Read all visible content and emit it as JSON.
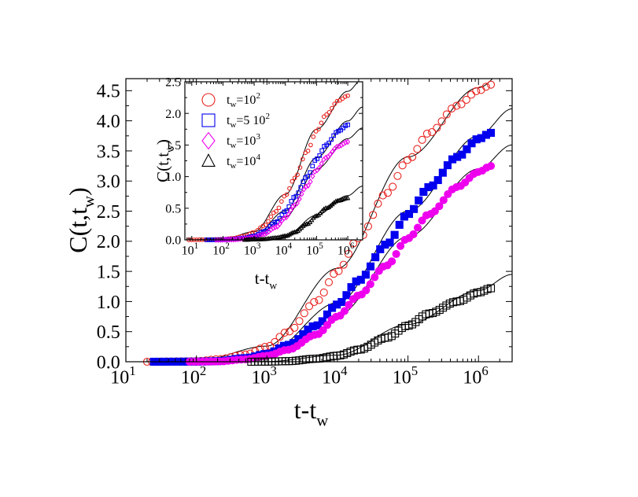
{
  "chart_data": [
    {
      "type": "scatter",
      "panel": "main",
      "xscale": "log",
      "xlabel": "t-t_w",
      "ylabel": "C(t,t_w)",
      "xlim": [
        10,
        3000000
      ],
      "ylim": [
        0,
        4.7
      ],
      "x_ticks": [
        {
          "value": 10,
          "base": "10",
          "exp": "1"
        },
        {
          "value": 100,
          "base": "10",
          "exp": "2"
        },
        {
          "value": 1000,
          "base": "10",
          "exp": "3"
        },
        {
          "value": 10000,
          "base": "10",
          "exp": "4"
        },
        {
          "value": 100000,
          "base": "10",
          "exp": "5"
        },
        {
          "value": 1000000,
          "base": "10",
          "exp": "6"
        }
      ],
      "y_ticks": [
        {
          "value": 0,
          "label": "0.0"
        },
        {
          "value": 0.5,
          "label": "0.5"
        },
        {
          "value": 1.0,
          "label": "1.0"
        },
        {
          "value": 1.5,
          "label": "1.5"
        },
        {
          "value": 2.0,
          "label": "2.0"
        },
        {
          "value": 2.5,
          "label": "2.5"
        },
        {
          "value": 3.0,
          "label": "3.0"
        },
        {
          "value": 3.5,
          "label": "3.5"
        },
        {
          "value": 4.0,
          "label": "4.0"
        },
        {
          "value": 4.5,
          "label": "4.5"
        }
      ],
      "series": [
        {
          "tw": "100",
          "marker": "circle-open",
          "color": "#e8231f",
          "points": [
            [
              20,
              0.0
            ],
            [
              50,
              0.005
            ],
            [
              100,
              0.01
            ],
            [
              200,
              0.04
            ],
            [
              500,
              0.12
            ],
            [
              1000,
              0.25
            ],
            [
              2000,
              0.5
            ],
            [
              5000,
              1.0
            ],
            [
              10000,
              1.5
            ],
            [
              20000,
              2.05
            ],
            [
              50000,
              2.8
            ],
            [
              100000,
              3.35
            ],
            [
              200000,
              3.8
            ],
            [
              500000,
              4.25
            ],
            [
              1000000,
              4.5
            ],
            [
              1500000,
              4.6
            ]
          ]
        },
        {
          "tw": "5 10^2",
          "marker": "square-filled",
          "color": "#0000ee",
          "points": [
            [
              25,
              0.0
            ],
            [
              100,
              0.002
            ],
            [
              200,
              0.01
            ],
            [
              500,
              0.06
            ],
            [
              1000,
              0.13
            ],
            [
              2000,
              0.28
            ],
            [
              5000,
              0.6
            ],
            [
              10000,
              0.95
            ],
            [
              20000,
              1.35
            ],
            [
              50000,
              1.95
            ],
            [
              100000,
              2.45
            ],
            [
              200000,
              2.9
            ],
            [
              500000,
              3.4
            ],
            [
              1000000,
              3.7
            ],
            [
              1500000,
              3.8
            ]
          ]
        },
        {
          "tw": "10^3",
          "marker": "circle-filled",
          "color": "#ee00ee",
          "points": [
            [
              80,
              0.0
            ],
            [
              200,
              0.005
            ],
            [
              500,
              0.04
            ],
            [
              1000,
              0.1
            ],
            [
              2000,
              0.2
            ],
            [
              5000,
              0.45
            ],
            [
              10000,
              0.75
            ],
            [
              20000,
              1.1
            ],
            [
              50000,
              1.6
            ],
            [
              100000,
              2.05
            ],
            [
              200000,
              2.45
            ],
            [
              500000,
              2.9
            ],
            [
              1000000,
              3.15
            ],
            [
              1500000,
              3.25
            ]
          ]
        },
        {
          "tw": "10^4",
          "marker": "square-open",
          "color": "#000000",
          "points": [
            [
              600,
              0.0
            ],
            [
              1000,
              0.002
            ],
            [
              2000,
              0.01
            ],
            [
              5000,
              0.05
            ],
            [
              10000,
              0.1
            ],
            [
              20000,
              0.2
            ],
            [
              50000,
              0.4
            ],
            [
              100000,
              0.6
            ],
            [
              200000,
              0.8
            ],
            [
              500000,
              1.0
            ],
            [
              1000000,
              1.15
            ],
            [
              1500000,
              1.22
            ]
          ]
        }
      ],
      "fit_curves": [
        {
          "points": [
            [
              18,
              0.0
            ],
            [
              100,
              0.012
            ],
            [
              1000,
              0.26
            ],
            [
              10000,
              1.55
            ],
            [
              100000,
              3.4
            ],
            [
              1000000,
              4.55
            ],
            [
              3000000,
              4.95
            ]
          ]
        },
        {
          "points": [
            [
              18,
              0.0
            ],
            [
              100,
              0.003
            ],
            [
              1000,
              0.14
            ],
            [
              10000,
              0.98
            ],
            [
              100000,
              2.5
            ],
            [
              1000000,
              3.75
            ],
            [
              3000000,
              4.2
            ]
          ]
        },
        {
          "points": [
            [
              70,
              0.0
            ],
            [
              200,
              0.006
            ],
            [
              1000,
              0.11
            ],
            [
              10000,
              0.77
            ],
            [
              100000,
              2.08
            ],
            [
              1000000,
              3.2
            ],
            [
              3000000,
              3.6
            ]
          ]
        },
        {
          "points": [
            [
              500,
              0.0
            ],
            [
              1000,
              0.003
            ],
            [
              10000,
              0.11
            ],
            [
              100000,
              0.62
            ],
            [
              1000000,
              1.18
            ],
            [
              3000000,
              1.45
            ]
          ]
        }
      ]
    },
    {
      "type": "scatter",
      "panel": "inset",
      "xscale": "log",
      "xlabel": "t-t_w",
      "ylabel": "C(t,t_w)",
      "xlim": [
        6,
        3000000
      ],
      "ylim": [
        0,
        2.5
      ],
      "x_ticks": [
        {
          "value": 10,
          "base": "10",
          "exp": "1"
        },
        {
          "value": 100,
          "base": "10",
          "exp": "2"
        },
        {
          "value": 1000,
          "base": "10",
          "exp": "3"
        },
        {
          "value": 10000,
          "base": "10",
          "exp": "4"
        },
        {
          "value": 100000,
          "base": "10",
          "exp": "5"
        },
        {
          "value": 1000000,
          "base": "10",
          "exp": "6"
        }
      ],
      "y_ticks": [
        {
          "value": 0,
          "label": "0.0"
        },
        {
          "value": 0.5,
          "label": "0.5"
        },
        {
          "value": 1.0,
          "label": "1.0"
        },
        {
          "value": 1.5,
          "label": "1.5"
        },
        {
          "value": 2.0,
          "label": "2.0"
        },
        {
          "value": 2.5,
          "label": "2.5"
        }
      ],
      "legend": {
        "position": "top-left",
        "entries": [
          {
            "text": "t_w=10^2",
            "prefix": "t",
            "sub": "w",
            "mid": "=10",
            "sup": "2",
            "marker": "circle-open",
            "color": "#e8231f"
          },
          {
            "text": "t_w=5 10^2",
            "prefix": "t",
            "sub": "w",
            "mid": "=5 10",
            "sup": "2",
            "marker": "square-open",
            "color": "#0000ee"
          },
          {
            "text": "t_w=10^3",
            "prefix": "t",
            "sub": "w",
            "mid": "=10",
            "sup": "3",
            "marker": "diamond-open",
            "color": "#ee00ee"
          },
          {
            "text": "t_w=10^4",
            "prefix": "t",
            "sub": "w",
            "mid": "=10",
            "sup": "4",
            "marker": "triangle-open",
            "color": "#000000"
          }
        ]
      },
      "series": [
        {
          "tw": "100",
          "marker": "circle-open",
          "color": "#e8231f",
          "points": [
            [
              8,
              0.0
            ],
            [
              20,
              0.002
            ],
            [
              50,
              0.005
            ],
            [
              100,
              0.01
            ],
            [
              200,
              0.025
            ],
            [
              500,
              0.06
            ],
            [
              1000,
              0.12
            ],
            [
              2000,
              0.22
            ],
            [
              5000,
              0.45
            ],
            [
              10000,
              0.7
            ],
            [
              20000,
              0.98
            ],
            [
              50000,
              1.4
            ],
            [
              100000,
              1.72
            ],
            [
              200000,
              1.98
            ],
            [
              500000,
              2.2
            ],
            [
              1000000,
              2.28
            ]
          ]
        },
        {
          "tw": "5 10^2",
          "marker": "square-open",
          "color": "#0000ee",
          "points": [
            [
              30,
              0.0
            ],
            [
              100,
              0.003
            ],
            [
              200,
              0.01
            ],
            [
              500,
              0.03
            ],
            [
              1000,
              0.06
            ],
            [
              2000,
              0.13
            ],
            [
              5000,
              0.28
            ],
            [
              10000,
              0.45
            ],
            [
              20000,
              0.68
            ],
            [
              50000,
              1.0
            ],
            [
              100000,
              1.28
            ],
            [
              200000,
              1.5
            ],
            [
              500000,
              1.72
            ],
            [
              1000000,
              1.82
            ]
          ]
        },
        {
          "tw": "10^3",
          "marker": "diamond-open",
          "color": "#ee00ee",
          "points": [
            [
              60,
              0.0
            ],
            [
              200,
              0.005
            ],
            [
              500,
              0.02
            ],
            [
              1000,
              0.04
            ],
            [
              2000,
              0.09
            ],
            [
              5000,
              0.2
            ],
            [
              10000,
              0.35
            ],
            [
              20000,
              0.55
            ],
            [
              50000,
              0.85
            ],
            [
              100000,
              1.1
            ],
            [
              200000,
              1.3
            ],
            [
              500000,
              1.48
            ],
            [
              1000000,
              1.55
            ]
          ]
        },
        {
          "tw": "10^4",
          "marker": "triangle-open",
          "color": "#000000",
          "points": [
            [
              500,
              0.0
            ],
            [
              1000,
              0.005
            ],
            [
              2000,
              0.01
            ],
            [
              5000,
              0.03
            ],
            [
              10000,
              0.06
            ],
            [
              20000,
              0.12
            ],
            [
              50000,
              0.25
            ],
            [
              100000,
              0.38
            ],
            [
              200000,
              0.5
            ],
            [
              500000,
              0.62
            ],
            [
              1000000,
              0.66
            ]
          ]
        }
      ],
      "fit_curves": [
        {
          "points": [
            [
              6,
              0.0
            ],
            [
              100,
              0.01
            ],
            [
              1000,
              0.13
            ],
            [
              10000,
              0.72
            ],
            [
              100000,
              1.75
            ],
            [
              1000000,
              2.35
            ],
            [
              3000000,
              2.55
            ]
          ]
        },
        {
          "points": [
            [
              6,
              0.0
            ],
            [
              100,
              0.004
            ],
            [
              1000,
              0.065
            ],
            [
              10000,
              0.46
            ],
            [
              100000,
              1.3
            ],
            [
              1000000,
              1.88
            ],
            [
              3000000,
              2.1
            ]
          ]
        },
        {
          "points": [
            [
              6,
              0.0
            ],
            [
              100,
              0.002
            ],
            [
              1000,
              0.045
            ],
            [
              10000,
              0.36
            ],
            [
              100000,
              1.12
            ],
            [
              1000000,
              1.6
            ],
            [
              3000000,
              1.77
            ]
          ]
        },
        {
          "points": [
            [
              100,
              0.0
            ],
            [
              1000,
              0.006
            ],
            [
              10000,
              0.065
            ],
            [
              100000,
              0.39
            ],
            [
              1000000,
              0.7
            ],
            [
              3000000,
              0.85
            ]
          ]
        }
      ]
    }
  ]
}
